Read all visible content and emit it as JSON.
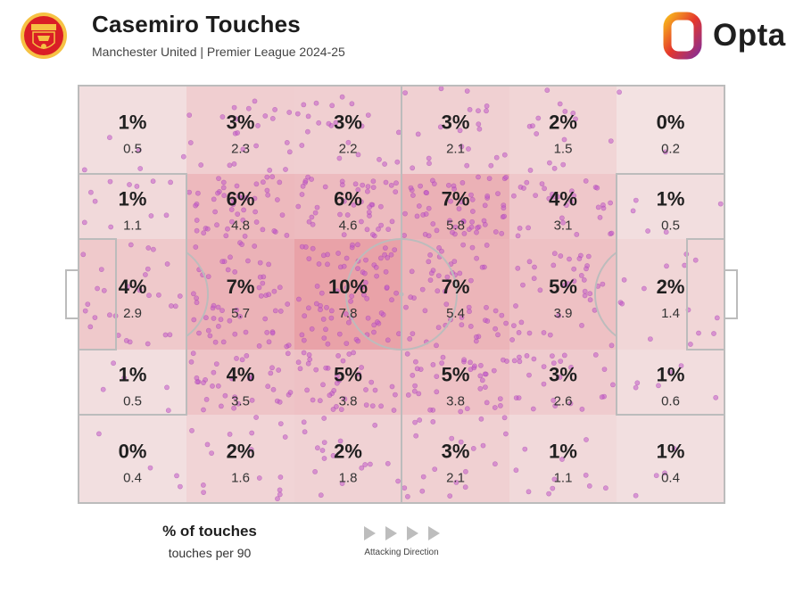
{
  "header": {
    "title": "Casemiro Touches",
    "subtitle": "Manchester United | Premier League 2024-25",
    "crest_icon": "manchester-united-crest-icon",
    "brand_name": "Opta",
    "brand_colors": [
      "#e4372d",
      "#f7b21c",
      "#8d2e8f"
    ]
  },
  "colors": {
    "cell_low": "#f3e4e4",
    "cell_high": "#e9a2a8",
    "touch_dot": "#c25ac8",
    "pitch_line": "#bcbcbc",
    "text": "#1f1f1f"
  },
  "chart_data": {
    "type": "heatmap",
    "title": "Casemiro Touches",
    "subtitle": "Manchester United | Premier League 2024-25",
    "legend": {
      "primary": "% of touches",
      "secondary": "touches per 90"
    },
    "direction_label": "Attacking Direction",
    "grid": {
      "columns": 6,
      "rows": 5
    },
    "rows": [
      {
        "pct": [
          "1%",
          "3%",
          "3%",
          "3%",
          "2%",
          "0%"
        ],
        "per90": [
          "0.5",
          "2.3",
          "2.2",
          "2.1",
          "1.5",
          "0.2"
        ]
      },
      {
        "pct": [
          "1%",
          "6%",
          "6%",
          "7%",
          "4%",
          "1%"
        ],
        "per90": [
          "1.1",
          "4.8",
          "4.6",
          "5.8",
          "3.1",
          "0.5"
        ]
      },
      {
        "pct": [
          "4%",
          "7%",
          "10%",
          "7%",
          "5%",
          "2%"
        ],
        "per90": [
          "2.9",
          "5.7",
          "7.8",
          "5.4",
          "3.9",
          "1.4"
        ]
      },
      {
        "pct": [
          "1%",
          "4%",
          "5%",
          "5%",
          "3%",
          "1%"
        ],
        "per90": [
          "0.5",
          "3.5",
          "3.8",
          "3.8",
          "2.6",
          "0.6"
        ]
      },
      {
        "pct": [
          "0%",
          "2%",
          "2%",
          "3%",
          "1%",
          "1%"
        ],
        "per90": [
          "0.4",
          "1.6",
          "1.8",
          "2.1",
          "1.1",
          "0.4"
        ]
      }
    ]
  }
}
